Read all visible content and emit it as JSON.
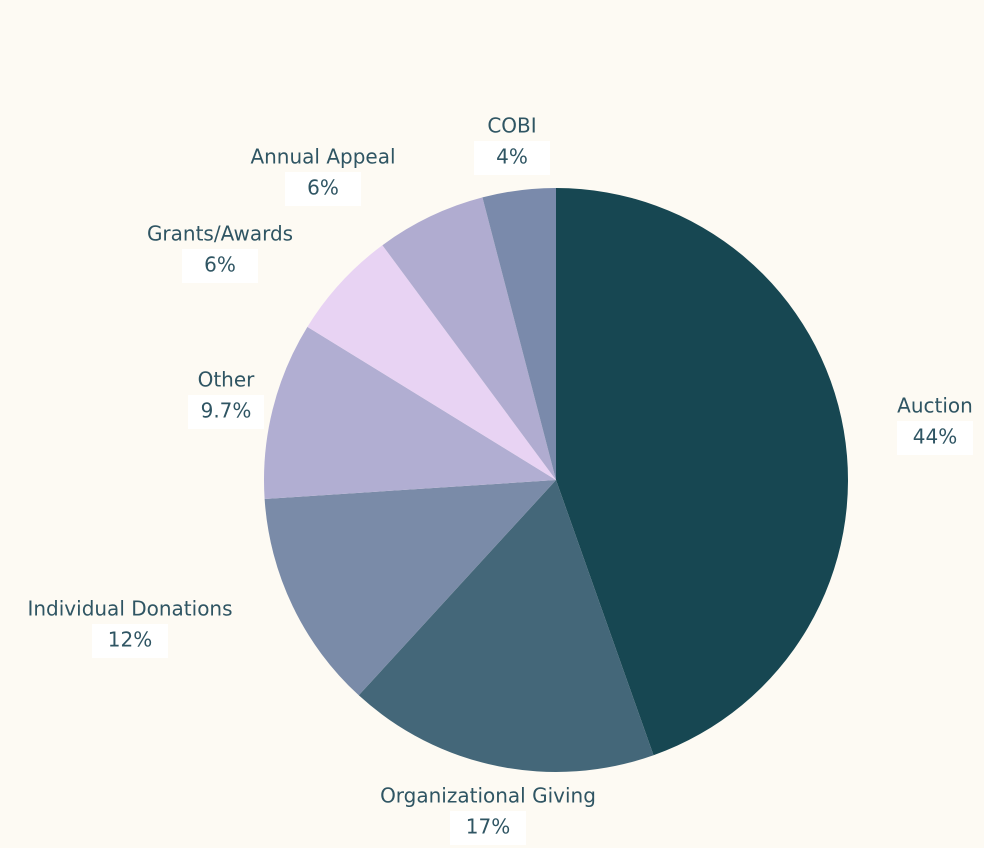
{
  "chart_data": {
    "type": "pie",
    "categories": [
      "Auction",
      "Organizational Giving",
      "Individual Donations",
      "Other",
      "Grants/Awards",
      "Annual Appeal",
      "COBI"
    ],
    "values": [
      44,
      17,
      12,
      9.7,
      6,
      6,
      4
    ],
    "value_labels": [
      "44%",
      "17%",
      "12%",
      "9.7%",
      "6%",
      "6%",
      "4%"
    ],
    "colors": [
      "#174752",
      "#446779",
      "#7a8ba8",
      "#b1aed2",
      "#e8d3f3",
      "#b0acd0",
      "#7a8aab"
    ]
  }
}
